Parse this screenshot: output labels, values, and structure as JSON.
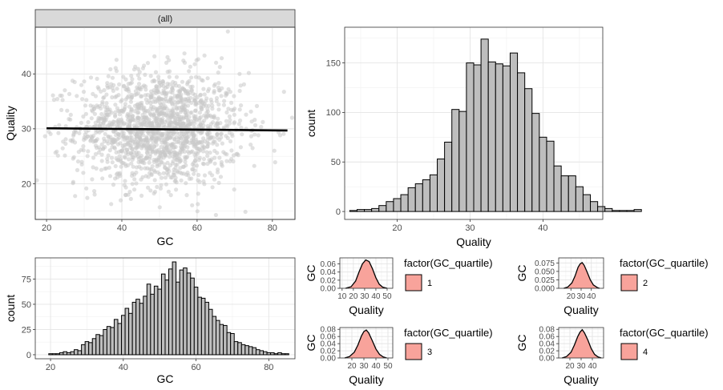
{
  "chart_data": [
    {
      "id": "scatter",
      "type": "scatter",
      "facet_label": "(all)",
      "xlabel": "GC",
      "ylabel": "Quality",
      "xlim": [
        17,
        86
      ],
      "ylim": [
        13.5,
        48.5
      ],
      "xticks": [
        20,
        40,
        60,
        80
      ],
      "yticks": [
        20,
        30,
        40
      ],
      "point_color": "#c8c8c8",
      "trend": {
        "x": [
          20,
          84
        ],
        "y": [
          30.1,
          29.7
        ],
        "color": "#000000"
      },
      "grid": true
    },
    {
      "id": "quality_hist",
      "type": "bar",
      "xlabel": "Quality",
      "ylabel": "count",
      "bin_start": 13.5,
      "bin_width": 1.0,
      "values": [
        1,
        2,
        2,
        3,
        6,
        10,
        13,
        17,
        24,
        28,
        32,
        37,
        53,
        70,
        103,
        101,
        150,
        148,
        174,
        151,
        149,
        147,
        160,
        140,
        124,
        99,
        75,
        71,
        46,
        36,
        36,
        25,
        17,
        10,
        5,
        3,
        1,
        1,
        1,
        2
      ],
      "xlim": [
        12.8,
        48.2
      ],
      "ylim": [
        -8,
        186
      ],
      "xticks": [
        20,
        30,
        40
      ],
      "yticks": [
        0,
        50,
        100,
        150
      ],
      "fill": "#bebebe",
      "grid": true
    },
    {
      "id": "gc_hist",
      "type": "bar",
      "xlabel": "GC",
      "ylabel": "count",
      "bin_start": 19.5,
      "bin_width": 1.0,
      "values": [
        1,
        1,
        1,
        2,
        3,
        2,
        3,
        5,
        4,
        10,
        13,
        12,
        16,
        20,
        19,
        25,
        28,
        27,
        35,
        31,
        39,
        46,
        41,
        52,
        55,
        51,
        58,
        70,
        60,
        68,
        65,
        80,
        74,
        85,
        92,
        72,
        84,
        86,
        81,
        76,
        67,
        57,
        56,
        52,
        45,
        38,
        34,
        30,
        29,
        22,
        21,
        13,
        12,
        10,
        9,
        8,
        7,
        5,
        4,
        3,
        2,
        2,
        1,
        2,
        1,
        1
      ],
      "xlim": [
        15.8,
        87.2
      ],
      "ylim": [
        -4,
        96
      ],
      "xticks": [
        20,
        40,
        60,
        80
      ],
      "yticks": [
        0,
        25,
        50,
        75
      ],
      "fill": "#bebebe",
      "grid": true
    },
    {
      "id": "density_q1",
      "type": "area",
      "xlabel": "Quality",
      "ylabel": "GC",
      "xticks": [
        10,
        20,
        30,
        40,
        50
      ],
      "yticks": [
        0.0,
        0.02,
        0.04,
        0.06
      ],
      "ytick_labels": [
        "0.00",
        "0.02",
        "0.04",
        "0.06"
      ],
      "xlim": [
        8,
        55
      ],
      "ylim": [
        0,
        0.075
      ],
      "x": [
        13,
        18,
        22,
        25,
        28,
        31,
        34,
        37,
        40,
        43,
        46,
        50
      ],
      "y": [
        0.0,
        0.004,
        0.018,
        0.04,
        0.06,
        0.07,
        0.066,
        0.048,
        0.026,
        0.01,
        0.003,
        0.0
      ],
      "fill": "#f8a39b",
      "legend_title": "factor(GC_quartile)",
      "legend_label": "1"
    },
    {
      "id": "density_q2",
      "type": "area",
      "xlabel": "Quality",
      "ylabel": "GC",
      "xticks": [
        20,
        30,
        40
      ],
      "yticks": [
        0.0,
        0.025,
        0.05,
        0.075
      ],
      "ytick_labels": [
        "0.000",
        "0.025",
        "0.050",
        "0.075"
      ],
      "xlim": [
        8,
        52
      ],
      "ylim": [
        0,
        0.09
      ],
      "x": [
        13,
        17,
        21,
        24,
        27,
        29,
        31,
        33,
        36,
        39,
        42,
        46,
        48
      ],
      "y": [
        0.0,
        0.004,
        0.016,
        0.036,
        0.062,
        0.072,
        0.076,
        0.068,
        0.047,
        0.025,
        0.01,
        0.002,
        0.0
      ],
      "fill": "#f8a39b",
      "legend_title": "factor(GC_quartile)",
      "legend_label": "2"
    },
    {
      "id": "density_q3",
      "type": "area",
      "xlabel": "Quality",
      "ylabel": "GC",
      "xticks": [
        20,
        30,
        40,
        50
      ],
      "yticks": [
        0.0,
        0.02,
        0.04,
        0.06,
        0.08
      ],
      "ytick_labels": [
        "0.00",
        "0.02",
        "0.04",
        "0.06",
        "0.08"
      ],
      "xlim": [
        10,
        54
      ],
      "ylim": [
        0,
        0.085
      ],
      "x": [
        14,
        18,
        22,
        25,
        28,
        30,
        32,
        34,
        37,
        40,
        43,
        46,
        49
      ],
      "y": [
        0.0,
        0.004,
        0.016,
        0.036,
        0.062,
        0.074,
        0.078,
        0.07,
        0.048,
        0.025,
        0.01,
        0.003,
        0.0
      ],
      "fill": "#f8a39b",
      "legend_title": "factor(GC_quartile)",
      "legend_label": "3"
    },
    {
      "id": "density_q4",
      "type": "area",
      "xlabel": "Quality",
      "ylabel": "GC",
      "xticks": [
        20,
        30,
        40
      ],
      "yticks": [
        0.0,
        0.02,
        0.04,
        0.06,
        0.08
      ],
      "ytick_labels": [
        "0.00",
        "0.02",
        "0.04",
        "0.06",
        "0.08"
      ],
      "xlim": [
        10,
        50
      ],
      "ylim": [
        0,
        0.085
      ],
      "x": [
        13,
        17,
        21,
        24,
        27,
        29,
        31,
        33,
        36,
        39,
        42,
        45,
        48
      ],
      "y": [
        0.0,
        0.004,
        0.016,
        0.036,
        0.06,
        0.072,
        0.079,
        0.07,
        0.05,
        0.026,
        0.01,
        0.003,
        0.0
      ],
      "fill": "#f8a39b",
      "legend_title": "factor(GC_quartile)",
      "legend_label": "4"
    }
  ]
}
